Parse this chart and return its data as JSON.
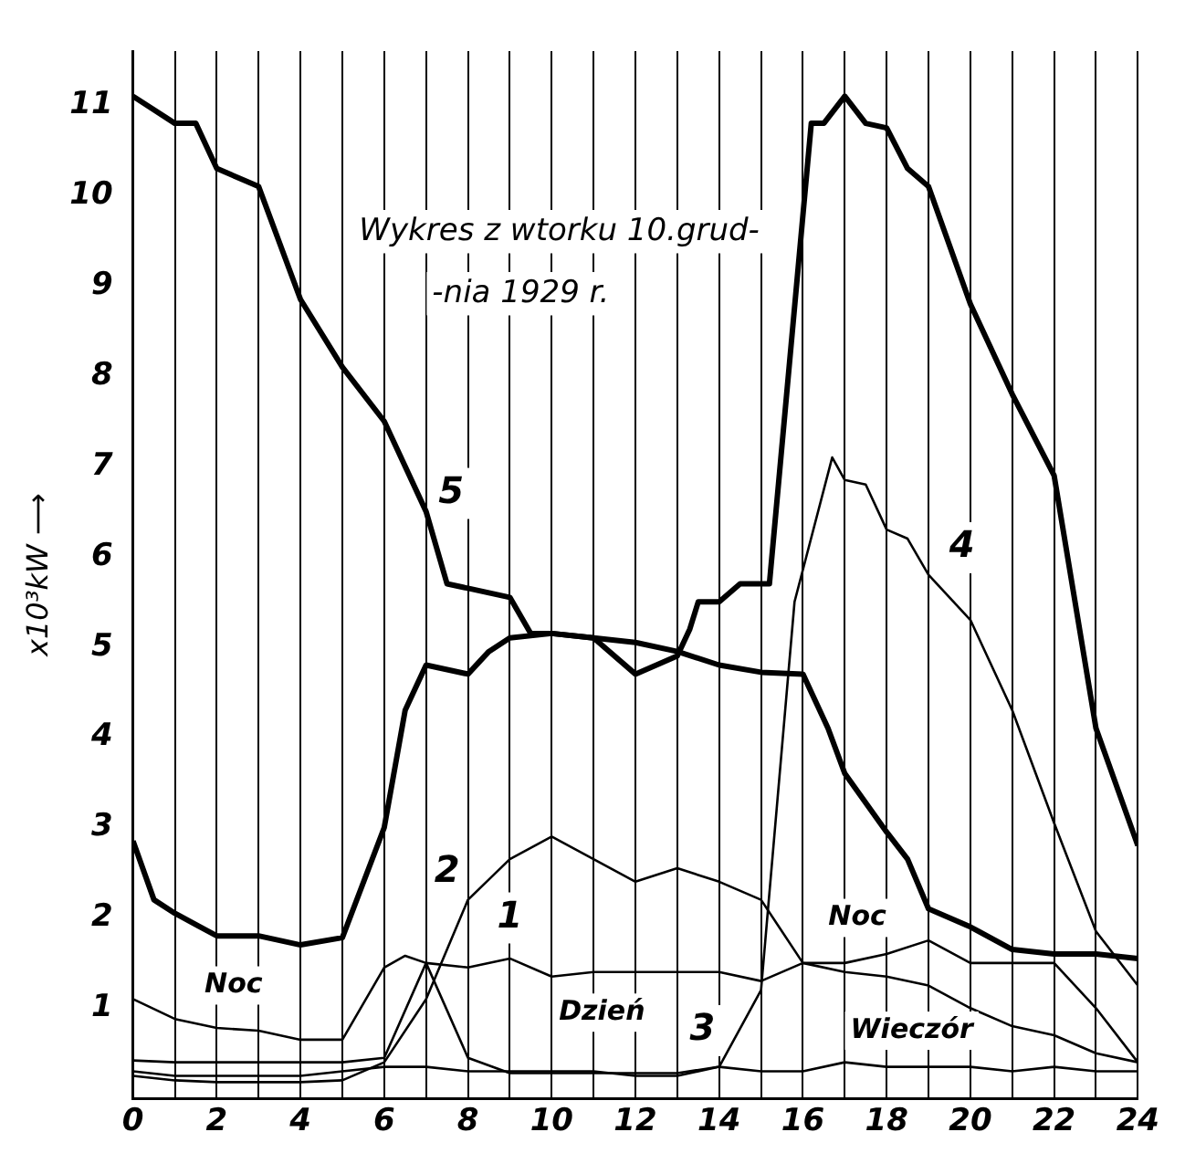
{
  "chart_data": {
    "type": "line",
    "title": "Wykres z wtorku 10.grud-\n-nia 1929 r.",
    "ylabel": "x10³kW ⟶",
    "xlim": [
      0,
      24
    ],
    "ylim": [
      0,
      11.6
    ],
    "xticks": [
      0,
      {
        "value": 1,
        "label": null
      },
      2,
      {
        "value": 3,
        "label": null
      },
      4,
      {
        "value": 5,
        "label": null
      },
      6,
      {
        "value": 7,
        "label": null
      },
      8,
      {
        "value": 9,
        "label": null
      },
      10,
      {
        "value": 11,
        "label": null
      },
      12,
      {
        "value": 13,
        "label": null
      },
      14,
      {
        "value": 15,
        "label": null
      },
      16,
      {
        "value": 17,
        "label": null
      },
      18,
      {
        "value": 19,
        "label": null
      },
      20,
      {
        "value": 21,
        "label": null
      },
      22,
      {
        "value": 23,
        "label": null
      },
      24
    ],
    "yticks": [
      1,
      2,
      3,
      4,
      5,
      6,
      7,
      8,
      9,
      10,
      11
    ],
    "grid": "x",
    "legend": false,
    "marker": "none",
    "line_style": "solid",
    "annotations": [
      "Noc",
      "Dzień",
      "Wieczór",
      "Noc"
    ],
    "series": [
      {
        "name": "5",
        "color": "#000000",
        "x": [
          0,
          1,
          1.5,
          2,
          3,
          4,
          5,
          6,
          7,
          7.5,
          8,
          9,
          9.5,
          10,
          11,
          12,
          13,
          13.3,
          13.5,
          14,
          14.5,
          15,
          15.2,
          16.2,
          16.5,
          17,
          17.5,
          18,
          18.5,
          19,
          20,
          21,
          22,
          23,
          24
        ],
        "values": [
          11.1,
          10.8,
          10.8,
          10.3,
          10.1,
          8.85,
          8.1,
          7.5,
          6.5,
          5.7,
          5.65,
          5.55,
          5.15,
          5.15,
          5.1,
          4.7,
          4.9,
          5.2,
          5.5,
          5.5,
          5.7,
          5.7,
          5.7,
          10.8,
          10.8,
          11.1,
          10.8,
          10.75,
          10.3,
          10.1,
          8.8,
          7.8,
          6.9,
          4.1,
          2.8
        ]
      },
      {
        "color": "#000000",
        "x": [
          0,
          0.5,
          1,
          2,
          3,
          4,
          5,
          6,
          6.5,
          7,
          8,
          8.5,
          9,
          10,
          11,
          12,
          13,
          14,
          15,
          16,
          16.6,
          17,
          18,
          18.5,
          19,
          20,
          21,
          22,
          23,
          24
        ],
        "values": [
          2.85,
          2.2,
          2.05,
          1.8,
          1.8,
          1.7,
          1.78,
          3,
          4.3,
          4.8,
          4.7,
          4.95,
          5.1,
          5.15,
          5.1,
          5.05,
          4.95,
          4.8,
          4.72,
          4.7,
          4.1,
          3.6,
          2.95,
          2.65,
          2.1,
          1.9,
          1.65,
          1.6,
          1.6,
          1.55
        ]
      },
      {
        "name": "4",
        "color": "#000000",
        "x": [
          0,
          1,
          2,
          3,
          4,
          5,
          6,
          6.5,
          7,
          8,
          9,
          10,
          11,
          12,
          13,
          14,
          15,
          15.8,
          16.7,
          17,
          17.5,
          18,
          18.5,
          19,
          20,
          21,
          22,
          23,
          24
        ],
        "values": [
          1.1,
          0.88,
          0.78,
          0.75,
          0.65,
          0.65,
          1.45,
          1.58,
          1.5,
          0.45,
          0.28,
          0.28,
          0.28,
          0.28,
          0.28,
          0.35,
          1.2,
          5.5,
          7.1,
          6.85,
          6.8,
          6.3,
          6.2,
          5.8,
          5.3,
          4.3,
          3.05,
          1.85,
          1.25
        ]
      },
      {
        "name": "2",
        "color": "#000000",
        "x": [
          0,
          1,
          2,
          3,
          4,
          5,
          6,
          7,
          8,
          9,
          10,
          11,
          12,
          13,
          14,
          15,
          16,
          17,
          18,
          19,
          20,
          21,
          22,
          23,
          24
        ],
        "values": [
          0.25,
          0.2,
          0.18,
          0.18,
          0.18,
          0.2,
          0.4,
          1.1,
          2.2,
          2.65,
          2.9,
          2.65,
          2.4,
          2.55,
          2.4,
          2.2,
          1.5,
          1.4,
          1.35,
          1.25,
          1,
          0.8,
          0.7,
          0.5,
          0.4
        ]
      },
      {
        "name": "1",
        "color": "#000000",
        "x": [
          0,
          1,
          2,
          3,
          4,
          5,
          6,
          7,
          8,
          9,
          10,
          11,
          12,
          13,
          14,
          15,
          16,
          17,
          18,
          19,
          20,
          21,
          22,
          23,
          24
        ],
        "values": [
          0.42,
          0.4,
          0.4,
          0.4,
          0.4,
          0.4,
          0.45,
          1.5,
          1.45,
          1.55,
          1.35,
          1.4,
          1.4,
          1.4,
          1.4,
          1.3,
          1.5,
          1.5,
          1.6,
          1.75,
          1.5,
          1.5,
          1.5,
          1,
          0.4
        ]
      },
      {
        "name": "3",
        "color": "#000000",
        "x": [
          0,
          1,
          2,
          3,
          4,
          5,
          6,
          7,
          8,
          9,
          10,
          11,
          12,
          13,
          14,
          15,
          16,
          17,
          18,
          19,
          20,
          21,
          22,
          23,
          24
        ],
        "values": [
          0.3,
          0.25,
          0.25,
          0.25,
          0.25,
          0.3,
          0.35,
          0.35,
          0.3,
          0.3,
          0.3,
          0.3,
          0.25,
          0.25,
          0.35,
          0.3,
          0.3,
          0.4,
          0.35,
          0.35,
          0.35,
          0.3,
          0.35,
          0.3,
          0.3
        ]
      }
    ]
  }
}
